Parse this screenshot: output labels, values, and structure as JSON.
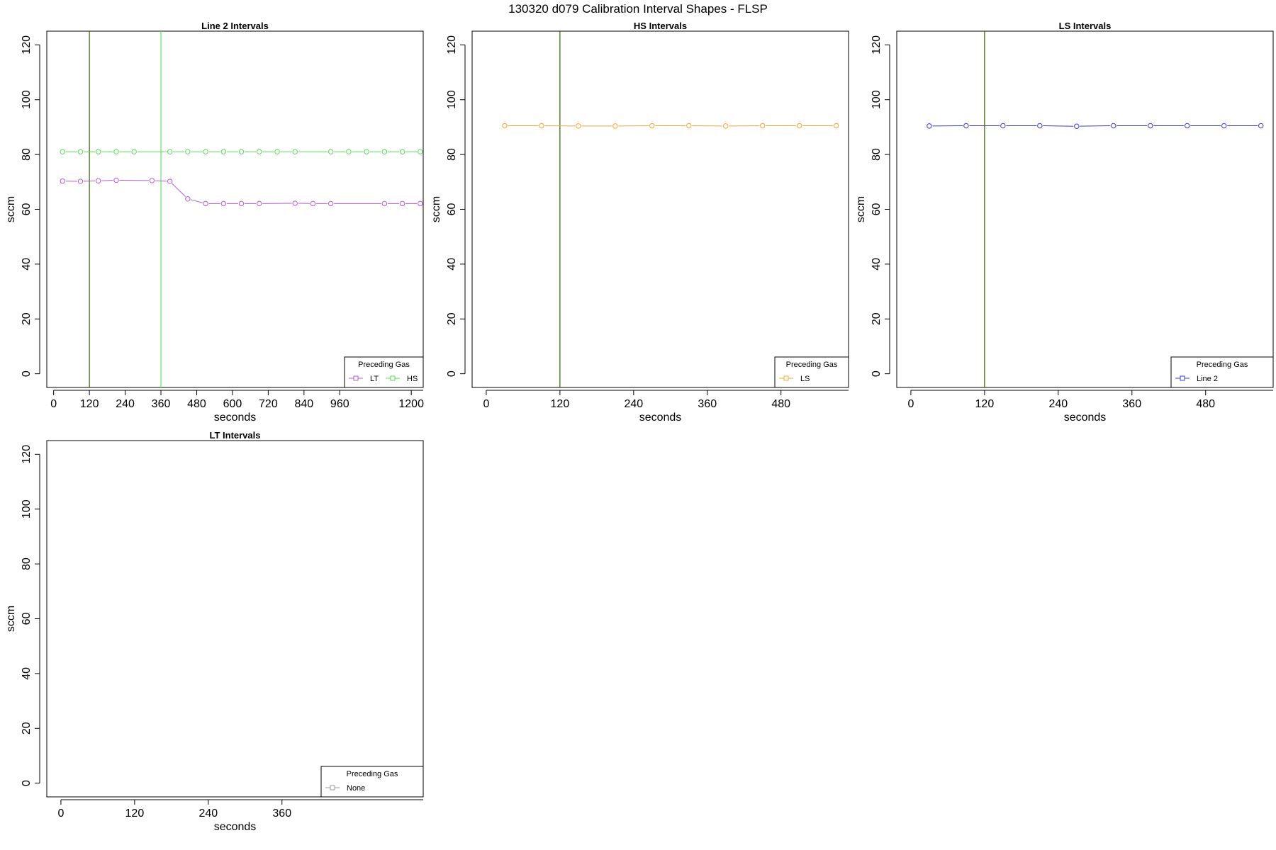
{
  "figure": {
    "title": "130320   d079   Calibration Interval Shapes - FLSP"
  },
  "chart_data": [
    {
      "type": "line",
      "title": "Line 2 Intervals",
      "xlabel": "seconds",
      "ylabel": "sccm",
      "xlim": [
        -23,
        1240
      ],
      "ylim": [
        -5,
        125
      ],
      "x_ticks": [
        0,
        120,
        240,
        360,
        480,
        600,
        720,
        840,
        960,
        1200
      ],
      "y_ticks": [
        0,
        20,
        40,
        60,
        80,
        100,
        120
      ],
      "vlines": [
        {
          "x": 120,
          "color": "#336600"
        },
        {
          "x": 360,
          "color": "#66e066"
        }
      ],
      "legend": {
        "title": "Preceding Gas",
        "position": "bottom-right",
        "layout": "horizontal"
      },
      "series": [
        {
          "name": "LT",
          "color": "#b25fd8",
          "points": [
            [
              30,
              70.3
            ],
            [
              90,
              70.2
            ],
            [
              150,
              70.4
            ],
            [
              210,
              70.6
            ],
            [
              330,
              70.5
            ],
            [
              390,
              70.2
            ],
            [
              450,
              63.8
            ],
            [
              510,
              62.1
            ],
            [
              570,
              62.1
            ],
            [
              630,
              62.1
            ],
            [
              690,
              62.1
            ],
            [
              810,
              62.2
            ],
            [
              870,
              62.1
            ],
            [
              930,
              62.1
            ],
            [
              1110,
              62.1
            ],
            [
              1170,
              62.1
            ],
            [
              1230,
              62.1
            ]
          ]
        },
        {
          "name": "HS",
          "color": "#55dd55",
          "points": [
            [
              30,
              81.0
            ],
            [
              90,
              81.0
            ],
            [
              150,
              81.0
            ],
            [
              210,
              81.0
            ],
            [
              270,
              81.0
            ],
            [
              390,
              81.0
            ],
            [
              450,
              81.0
            ],
            [
              510,
              81.0
            ],
            [
              570,
              81.0
            ],
            [
              630,
              81.0
            ],
            [
              690,
              81.0
            ],
            [
              750,
              81.0
            ],
            [
              810,
              81.0
            ],
            [
              930,
              81.0
            ],
            [
              990,
              81.0
            ],
            [
              1050,
              81.0
            ],
            [
              1110,
              81.0
            ],
            [
              1170,
              81.0
            ],
            [
              1230,
              81.0
            ]
          ]
        }
      ]
    },
    {
      "type": "line",
      "title": "HS Intervals",
      "xlabel": "seconds",
      "ylabel": "sccm",
      "xlim": [
        -23,
        590
      ],
      "ylim": [
        -5,
        125
      ],
      "x_ticks": [
        0,
        120,
        240,
        360,
        480
      ],
      "y_ticks": [
        0,
        20,
        40,
        60,
        80,
        100,
        120
      ],
      "vlines": [
        {
          "x": 120,
          "color": "#336600"
        }
      ],
      "legend": {
        "title": "Preceding Gas",
        "position": "bottom-right",
        "layout": "horizontal"
      },
      "series": [
        {
          "name": "LS",
          "color": "#f0a830",
          "points": [
            [
              30,
              90.5
            ],
            [
              90,
              90.5
            ],
            [
              150,
              90.4
            ],
            [
              210,
              90.4
            ],
            [
              270,
              90.5
            ],
            [
              330,
              90.5
            ],
            [
              390,
              90.4
            ],
            [
              450,
              90.5
            ],
            [
              510,
              90.5
            ],
            [
              570,
              90.5
            ]
          ]
        }
      ]
    },
    {
      "type": "line",
      "title": "LS Intervals",
      "xlabel": "seconds",
      "ylabel": "sccm",
      "xlim": [
        -23,
        590
      ],
      "ylim": [
        -5,
        125
      ],
      "x_ticks": [
        0,
        120,
        240,
        360,
        480
      ],
      "y_ticks": [
        0,
        20,
        40,
        60,
        80,
        100,
        120
      ],
      "vlines": [
        {
          "x": 120,
          "color": "#336600"
        }
      ],
      "legend": {
        "title": "Preceding Gas",
        "position": "bottom-right",
        "layout": "horizontal"
      },
      "series": [
        {
          "name": "Line 2",
          "color": "#3b3bd9",
          "points": [
            [
              30,
              90.4
            ],
            [
              90,
              90.5
            ],
            [
              150,
              90.5
            ],
            [
              210,
              90.5
            ],
            [
              270,
              90.3
            ],
            [
              330,
              90.5
            ],
            [
              390,
              90.5
            ],
            [
              450,
              90.5
            ],
            [
              510,
              90.5
            ],
            [
              570,
              90.5
            ]
          ]
        }
      ]
    },
    {
      "type": "line",
      "title": "LT Intervals",
      "xlabel": "seconds",
      "ylabel": "sccm",
      "xlim": [
        -23,
        590
      ],
      "ylim": [
        -5,
        125
      ],
      "x_ticks": [
        0,
        120,
        240,
        360
      ],
      "y_ticks": [
        0,
        20,
        40,
        60,
        80,
        100,
        120
      ],
      "vlines": [],
      "legend": {
        "title": "Preceding Gas",
        "position": "bottom-right",
        "layout": "horizontal"
      },
      "series": [
        {
          "name": "None",
          "color": "#999999",
          "points": []
        }
      ]
    }
  ]
}
